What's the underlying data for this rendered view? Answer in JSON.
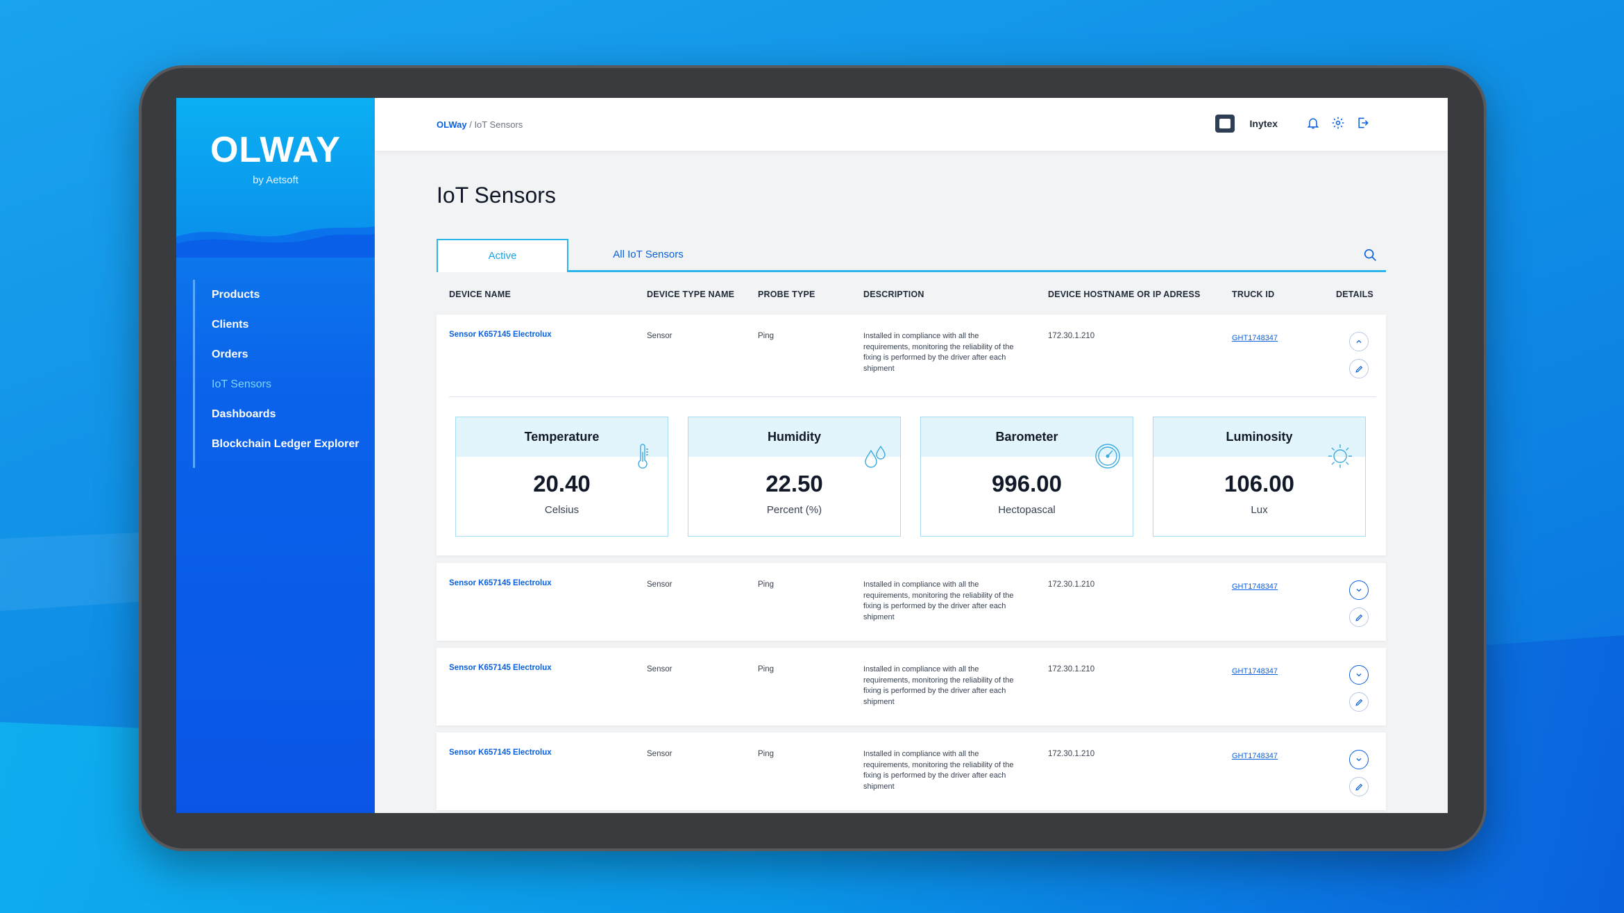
{
  "app": {
    "logo": "OLWAY",
    "logo_sub": "by Aetsoft"
  },
  "sidebar": {
    "items": [
      {
        "label": "Products"
      },
      {
        "label": "Clients"
      },
      {
        "label": "Orders"
      },
      {
        "label": "IoT Sensors"
      },
      {
        "label": "Dashboards"
      },
      {
        "label": "Blockchain Ledger Explorer"
      }
    ]
  },
  "header": {
    "breadcrumb_root": "OLWay",
    "breadcrumb_sep": " / ",
    "breadcrumb_current": "IoT Sensors",
    "company": "Inytex"
  },
  "page": {
    "title": "IoT Sensors",
    "tabs": [
      {
        "label": "Active"
      },
      {
        "label": "All IoT Sensors"
      }
    ]
  },
  "table": {
    "columns": [
      "DEVICE NAME",
      "DEVICE TYPE NAME",
      "PROBE TYPE",
      "DESCRIPTION",
      "DEVICE HOSTNAME OR IP ADRESS",
      "TRUCK ID",
      "DETAILS"
    ],
    "rows": [
      {
        "device_name": "Sensor K657145 Electrolux",
        "type": "Sensor",
        "probe": "Ping",
        "description": "Installed in compliance with all the requirements, monitoring the reliability of the fixing is performed by the driver after each shipment",
        "ip": "172.30.1.210",
        "truck": "GHT1748347"
      },
      {
        "device_name": "Sensor K657145 Electrolux",
        "type": "Sensor",
        "probe": "Ping",
        "description": "Installed in compliance with all the requirements, monitoring the reliability of the fixing is performed by the driver after each shipment",
        "ip": "172.30.1.210",
        "truck": "GHT1748347"
      },
      {
        "device_name": "Sensor K657145 Electrolux",
        "type": "Sensor",
        "probe": "Ping",
        "description": "Installed in compliance with all the requirements, monitoring the reliability of the fixing is performed by the driver after each shipment",
        "ip": "172.30.1.210",
        "truck": "GHT1748347"
      },
      {
        "device_name": "Sensor K657145 Electrolux",
        "type": "Sensor",
        "probe": "Ping",
        "description": "Installed in compliance with all the requirements, monitoring the reliability of the fixing is performed by the driver after each shipment",
        "ip": "172.30.1.210",
        "truck": "GHT1748347"
      }
    ]
  },
  "sensors": [
    {
      "label": "Temperature",
      "value": "20.40",
      "unit": "Celsius",
      "icon": "thermometer-icon"
    },
    {
      "label": "Humidity",
      "value": "22.50",
      "unit": "Percent (%)",
      "icon": "droplets-icon"
    },
    {
      "label": "Barometer",
      "value": "996.00",
      "unit": "Hectopascal",
      "icon": "gauge-icon"
    },
    {
      "label": "Luminosity",
      "value": "106.00",
      "unit": "Lux",
      "icon": "sun-icon"
    }
  ],
  "icons": {
    "bell": "bell-icon",
    "settings": "gear-icon",
    "logout": "logout-icon",
    "search": "search-icon",
    "expand": "chevron-icon",
    "edit": "pencil-icon"
  },
  "colors": {
    "accent": "#0a5fdc",
    "tab_accent": "#2bb5ea",
    "sidebar": "#0a55e6"
  }
}
